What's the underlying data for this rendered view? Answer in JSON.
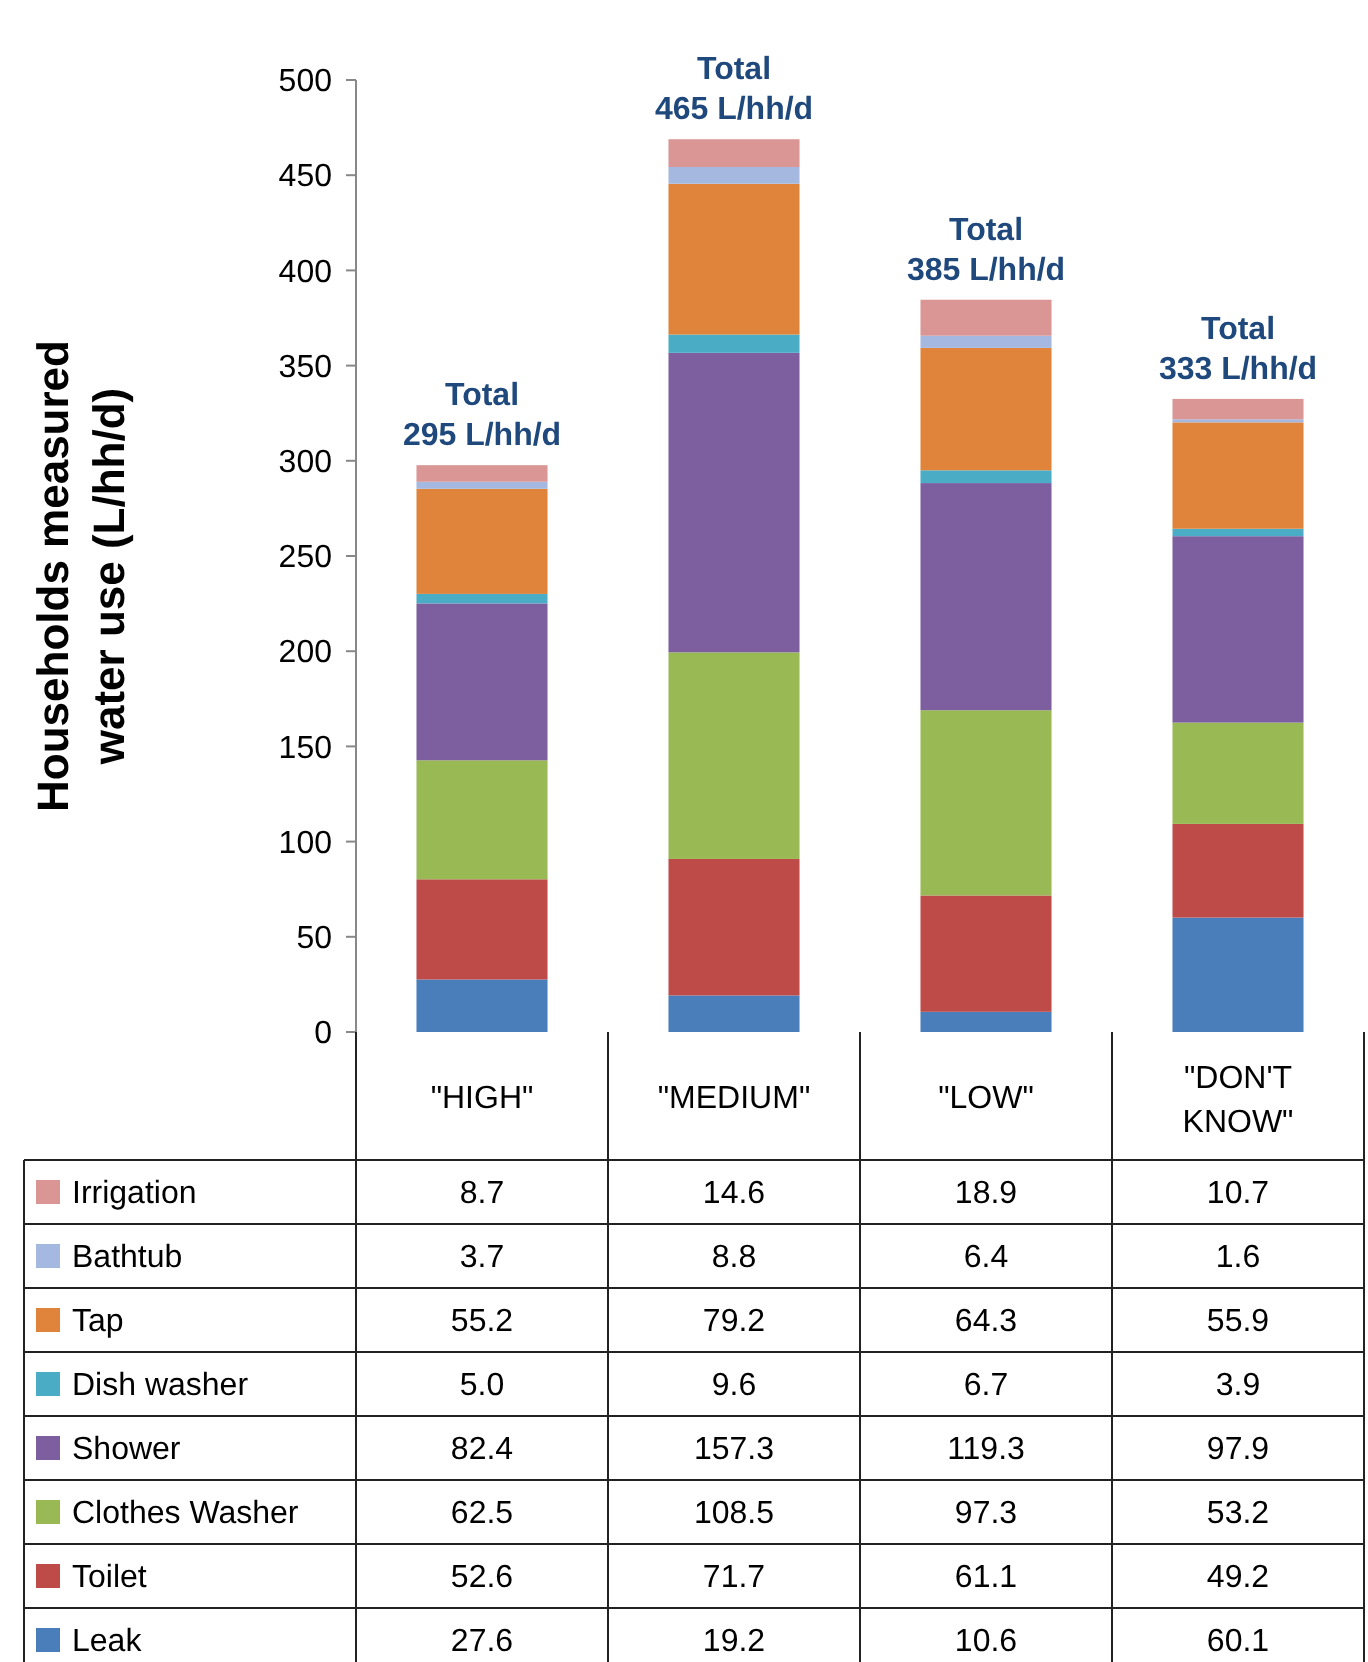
{
  "chart_data": {
    "type": "bar",
    "stacked": true,
    "ylabel": "Households measured water use (L/hh/d)",
    "categories": [
      "\"HIGH\"",
      "\"MEDIUM\"",
      "\"LOW\"",
      "\"DON'T KNOW\""
    ],
    "ylim": [
      0,
      500
    ],
    "yticks": [
      0,
      50,
      100,
      150,
      200,
      250,
      300,
      350,
      400,
      450,
      500
    ],
    "legend": "bottom",
    "totals": [
      "Total 295 L/hh/d",
      "Total 465 L/hh/d",
      "Total 385 L/hh/d",
      "Total 333 L/hh/d"
    ],
    "series": [
      {
        "name": "Leak",
        "color": "#4a7ebb",
        "values": [
          27.6,
          19.2,
          10.6,
          60.1
        ],
        "value_labels": [
          "27.6",
          "19.2",
          "10.6",
          "60.1"
        ]
      },
      {
        "name": "Toilet",
        "color": "#be4b48",
        "values": [
          52.6,
          71.7,
          61.1,
          49.2
        ],
        "value_labels": [
          "52.6",
          "71.7",
          "61.1",
          "49.2"
        ]
      },
      {
        "name": "Clothes Washer",
        "color": "#98b954",
        "values": [
          62.5,
          108.5,
          97.3,
          53.2
        ],
        "value_labels": [
          "62.5",
          "108.5",
          "97.3",
          "53.2"
        ]
      },
      {
        "name": "Shower",
        "color": "#7d5fa0",
        "values": [
          82.4,
          157.3,
          119.3,
          97.9
        ],
        "value_labels": [
          "82.4",
          "157.3",
          "119.3",
          "97.9"
        ]
      },
      {
        "name": "Dish washer",
        "color": "#4bacc6",
        "values": [
          5.0,
          9.6,
          6.7,
          3.9
        ],
        "value_labels": [
          "5.0",
          "9.6",
          "6.7",
          "3.9"
        ]
      },
      {
        "name": "Tap",
        "color": "#e0843c",
        "values": [
          55.2,
          79.2,
          64.3,
          55.9
        ],
        "value_labels": [
          "55.2",
          "79.2",
          "64.3",
          "55.9"
        ]
      },
      {
        "name": "Bathtub",
        "color": "#a5b9e0",
        "values": [
          3.7,
          8.8,
          6.4,
          1.6
        ],
        "value_labels": [
          "3.7",
          "8.8",
          "6.4",
          "1.6"
        ]
      },
      {
        "name": "Irrigation",
        "color": "#d99694",
        "values": [
          8.7,
          14.6,
          18.9,
          10.7
        ],
        "value_labels": [
          "8.7",
          "14.6",
          "18.9",
          "10.7"
        ]
      }
    ]
  }
}
